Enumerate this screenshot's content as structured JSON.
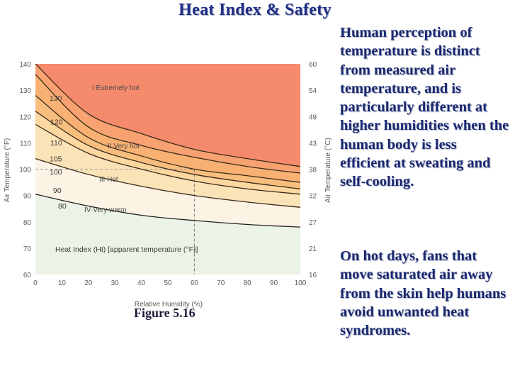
{
  "slide": {
    "title": "Heat Index & Safety",
    "paragraph1": "Human perception of temperature is distinct from measured air temperature, and is particularly different at higher humidities when the human body is less efficient at sweating and self-cooling.",
    "paragraph2": " On hot days, fans that move saturated air away from the skin help humans avoid unwanted heat syndromes.",
    "figure_label": "Figure 5.16"
  },
  "colors": {
    "title": "#1f2f86",
    "text": "#1a2870",
    "zone_extreme": "#f58a6c",
    "zone_very_hot": "#f7be7e",
    "zone_hot": "#fbe3b8",
    "zone_very_warm": "#fdf3e4",
    "zone_base": "#eaf3e6"
  },
  "chart_data": {
    "type": "line",
    "xlabel": "Relative Humidity (%)",
    "ylabel_left": "Air Temperature (°F)",
    "ylabel_right": "Air Temperature (°C)",
    "xlim": [
      0,
      100
    ],
    "ylim": [
      60,
      140
    ],
    "x_ticks": [
      0,
      10,
      20,
      30,
      40,
      50,
      60,
      70,
      80,
      90,
      100
    ],
    "y_ticks_f": [
      60,
      70,
      80,
      90,
      100,
      110,
      120,
      130,
      140
    ],
    "y_ticks_c": [
      16,
      21,
      27,
      32,
      38,
      43,
      49,
      54,
      60
    ],
    "annotation": "Heat Index (HI) [apparent temperature (°F)]",
    "zones": [
      {
        "name": "I Extremely hot",
        "above_hi": 130
      },
      {
        "name": "II Very hot",
        "above_hi": 105
      },
      {
        "name": "III Hot",
        "above_hi": 90
      },
      {
        "name": "IV Very warm",
        "above_hi": 80
      }
    ],
    "series": [
      {
        "name": "130",
        "x": [
          0,
          20,
          40,
          60,
          80,
          100
        ],
        "y": [
          140,
          121,
          113.5,
          107.5,
          104,
          101
        ]
      },
      {
        "name": "120",
        "x": [
          0,
          20,
          40,
          60,
          80,
          100
        ],
        "y": [
          136,
          116,
          109,
          104.5,
          101,
          98.5
        ]
      },
      {
        "name": "110",
        "x": [
          0,
          20,
          40,
          60,
          80,
          100
        ],
        "y": [
          128,
          112,
          105,
          100,
          97.5,
          95
        ]
      },
      {
        "name": "105",
        "x": [
          0,
          20,
          40,
          60,
          80,
          100
        ],
        "y": [
          122,
          109,
          102.5,
          98,
          95,
          92.5
        ]
      },
      {
        "name": "100",
        "x": [
          0,
          20,
          40,
          60,
          80,
          100
        ],
        "y": [
          117,
          106,
          100,
          95.5,
          92.5,
          90.5
        ]
      },
      {
        "name": "90",
        "x": [
          0,
          20,
          40,
          60,
          80,
          100
        ],
        "y": [
          104,
          98,
          93.5,
          90,
          87.5,
          85.5
        ]
      },
      {
        "name": "80",
        "x": [
          0,
          20,
          40,
          60,
          80,
          100
        ],
        "y": [
          90.5,
          86,
          82.5,
          80.5,
          79,
          78
        ]
      }
    ],
    "reference": {
      "x": 60,
      "y": 100
    }
  }
}
